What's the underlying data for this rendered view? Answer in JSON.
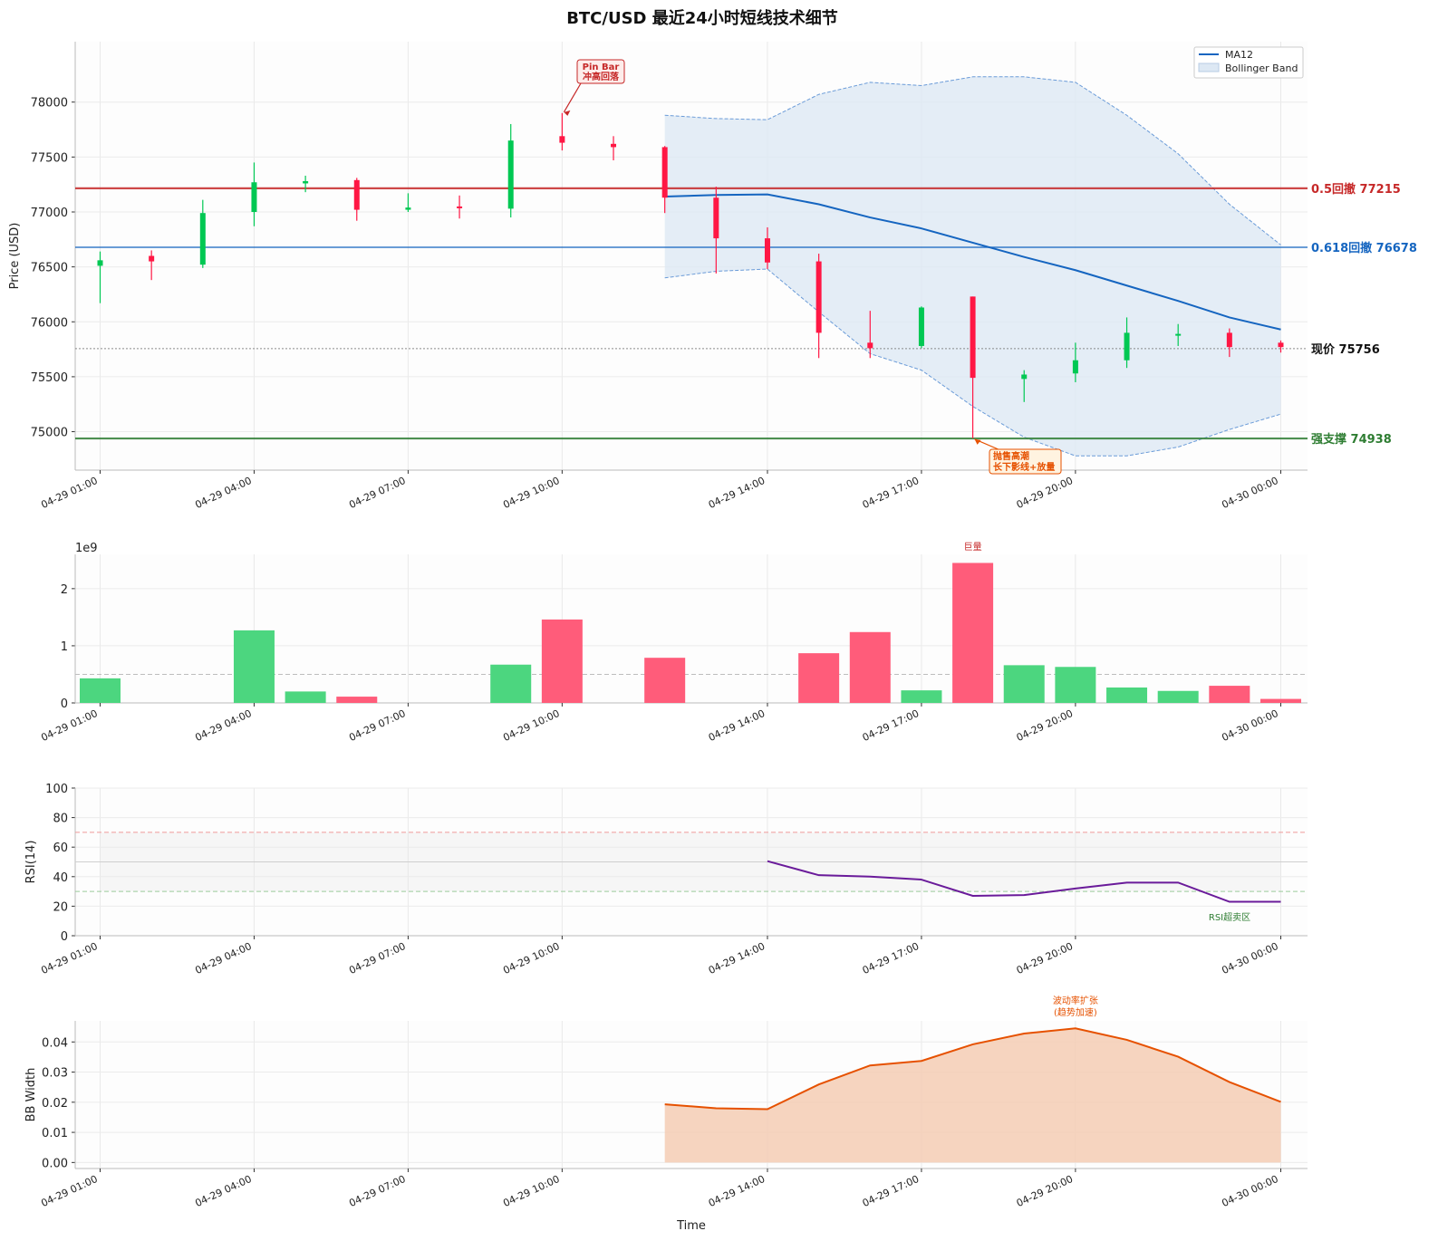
{
  "title": "BTC/USD 最近24小时短线技术细节",
  "chart_data": [
    {
      "type": "candlestick",
      "panel": "price",
      "ylabel": "Price (USD)",
      "ylim": [
        74650,
        78550
      ],
      "yticks": [
        75000,
        75500,
        76000,
        76500,
        77000,
        77500,
        78000
      ],
      "xtick_labels": [
        "04-29 01:00",
        "04-29 04:00",
        "04-29 07:00",
        "04-29 10:00",
        "04-29 14:00",
        "04-29 17:00",
        "04-29 20:00",
        "04-30 00:00"
      ],
      "xtick_hours": [
        1,
        4,
        7,
        10,
        14,
        17,
        20,
        24
      ],
      "grid": true,
      "legend": {
        "placement": "top-right",
        "entries": [
          "MA12",
          "Bollinger Band"
        ]
      },
      "candles": [
        {
          "t": "04-29 01:00",
          "open": 76510,
          "high": 76640,
          "low": 76170,
          "close": 76560
        },
        {
          "t": "04-29 02:00",
          "open": 76600,
          "high": 76650,
          "low": 76380,
          "close": 76550
        },
        {
          "t": "04-29 03:00",
          "open": 76520,
          "high": 77110,
          "low": 76490,
          "close": 76990
        },
        {
          "t": "04-29 04:00",
          "open": 77000,
          "high": 77450,
          "low": 76870,
          "close": 77270
        },
        {
          "t": "04-29 05:00",
          "open": 77260,
          "high": 77330,
          "low": 77180,
          "close": 77280
        },
        {
          "t": "04-29 06:00",
          "open": 77290,
          "high": 77310,
          "low": 76920,
          "close": 77020
        },
        {
          "t": "04-29 07:00",
          "open": 77020,
          "high": 77170,
          "low": 77000,
          "close": 77040
        },
        {
          "t": "04-29 08:00",
          "open": 77050,
          "high": 77150,
          "low": 76940,
          "close": 77040
        },
        {
          "t": "04-29 09:00",
          "open": 77030,
          "high": 77800,
          "low": 76950,
          "close": 77650
        },
        {
          "t": "04-29 10:00",
          "open": 77690,
          "high": 77900,
          "low": 77560,
          "close": 77630
        },
        {
          "t": "04-29 11:00",
          "open": 77620,
          "high": 77690,
          "low": 77470,
          "close": 77590
        },
        {
          "t": "04-29 12:00",
          "open": 77590,
          "high": 77600,
          "low": 76990,
          "close": 77130
        },
        {
          "t": "04-29 13:00",
          "open": 77130,
          "high": 77230,
          "low": 76440,
          "close": 76760
        },
        {
          "t": "04-29 14:00",
          "open": 76760,
          "high": 76860,
          "low": 76480,
          "close": 76540
        },
        {
          "t": "04-29 15:00",
          "open": 76550,
          "high": 76620,
          "low": 75670,
          "close": 75900
        },
        {
          "t": "04-29 16:00",
          "open": 75810,
          "high": 76100,
          "low": 75670,
          "close": 75760
        },
        {
          "t": "04-29 17:00",
          "open": 75780,
          "high": 76140,
          "low": 75760,
          "close": 76130
        },
        {
          "t": "04-29 18:00",
          "open": 76230,
          "high": 76230,
          "low": 74940,
          "close": 75490
        },
        {
          "t": "04-29 19:00",
          "open": 75480,
          "high": 75560,
          "low": 75270,
          "close": 75520
        },
        {
          "t": "04-29 20:00",
          "open": 75530,
          "high": 75810,
          "low": 75450,
          "close": 75650
        },
        {
          "t": "04-29 21:00",
          "open": 75650,
          "high": 76040,
          "low": 75580,
          "close": 75900
        },
        {
          "t": "04-29 22:00",
          "open": 75880,
          "high": 75980,
          "low": 75780,
          "close": 75890
        },
        {
          "t": "04-29 23:00",
          "open": 75900,
          "high": 75940,
          "low": 75680,
          "close": 75770
        },
        {
          "t": "04-30 00:00",
          "open": 75810,
          "high": 75830,
          "low": 75720,
          "close": 75770
        }
      ],
      "series": [
        {
          "name": "MA12",
          "x": [
            "04-29 12:00",
            "04-29 13:00",
            "04-29 14:00",
            "04-29 15:00",
            "04-29 16:00",
            "04-29 17:00",
            "04-29 18:00",
            "04-29 19:00",
            "04-29 20:00",
            "04-29 21:00",
            "04-29 22:00",
            "04-29 23:00",
            "04-30 00:00"
          ],
          "values": [
            77140,
            77155,
            77160,
            77070,
            76950,
            76850,
            76720,
            76590,
            76470,
            76330,
            76190,
            76040,
            75930
          ],
          "color": "#1565c0"
        },
        {
          "name": "Bollinger Band",
          "x": [
            "04-29 12:00",
            "04-29 13:00",
            "04-29 14:00",
            "04-29 15:00",
            "04-29 16:00",
            "04-29 17:00",
            "04-29 18:00",
            "04-29 19:00",
            "04-29 20:00",
            "04-29 21:00",
            "04-29 22:00",
            "04-29 23:00",
            "04-30 00:00"
          ],
          "upper": [
            77880,
            77850,
            77840,
            78070,
            78180,
            78150,
            78230,
            78230,
            78180,
            77880,
            77530,
            77070,
            76700
          ],
          "lower": [
            76400,
            76460,
            76480,
            76090,
            75710,
            75560,
            75230,
            74950,
            74780,
            74780,
            74860,
            75020,
            75160
          ],
          "color": "#6a9bd8"
        }
      ],
      "hlines": [
        {
          "label": "0.5回撤 77215",
          "value": 77215,
          "color": "#c62828"
        },
        {
          "label": "0.618回撤 76678",
          "value": 76678,
          "color": "#1565c0"
        },
        {
          "label": "现价 75756",
          "value": 75756,
          "color": "#777777"
        },
        {
          "label": "强支撑 74938",
          "value": 74938,
          "color": "#2e7d32"
        }
      ],
      "annotations": [
        {
          "line1": "Pin Bar",
          "line2": "冲高回落",
          "at": "04-29 10:00",
          "value": 77900,
          "color": "#c62828"
        },
        {
          "line1": "抛售高潮",
          "line2": "长下影线+放量",
          "at": "04-29 18:00",
          "value": 74940,
          "color": "#e65100"
        }
      ]
    },
    {
      "type": "bar",
      "panel": "volume",
      "offset_text": "1e9",
      "ylim": [
        0,
        2.6
      ],
      "yticks": [
        0,
        1,
        2
      ],
      "average_line": 0.5,
      "annotation": "巨量",
      "volumes": [
        {
          "t": "04-29 01:00",
          "value": 0.43,
          "dir": "up"
        },
        {
          "t": "04-29 04:00",
          "value": 1.27,
          "dir": "up"
        },
        {
          "t": "04-29 05:00",
          "value": 0.2,
          "dir": "up"
        },
        {
          "t": "04-29 06:00",
          "value": 0.11,
          "dir": "down"
        },
        {
          "t": "04-29 09:00",
          "value": 0.67,
          "dir": "up"
        },
        {
          "t": "04-29 10:00",
          "value": 1.46,
          "dir": "down"
        },
        {
          "t": "04-29 12:00",
          "value": 0.79,
          "dir": "down"
        },
        {
          "t": "04-29 15:00",
          "value": 0.87,
          "dir": "down"
        },
        {
          "t": "04-29 16:00",
          "value": 1.24,
          "dir": "down"
        },
        {
          "t": "04-29 17:00",
          "value": 0.22,
          "dir": "up"
        },
        {
          "t": "04-29 18:00",
          "value": 2.45,
          "dir": "down"
        },
        {
          "t": "04-29 19:00",
          "value": 0.66,
          "dir": "up"
        },
        {
          "t": "04-29 20:00",
          "value": 0.63,
          "dir": "up"
        },
        {
          "t": "04-29 21:00",
          "value": 0.27,
          "dir": "up"
        },
        {
          "t": "04-29 22:00",
          "value": 0.21,
          "dir": "up"
        },
        {
          "t": "04-29 23:00",
          "value": 0.3,
          "dir": "down"
        },
        {
          "t": "04-30 00:00",
          "value": 0.07,
          "dir": "down"
        }
      ]
    },
    {
      "type": "line",
      "panel": "rsi",
      "ylabel": "RSI(14)",
      "ylim": [
        0,
        100
      ],
      "yticks": [
        0,
        20,
        40,
        60,
        80,
        100
      ],
      "overbought": 70,
      "oversold": 30,
      "midline": 50,
      "annotation": "RSI超卖区",
      "series": [
        {
          "name": "RSI(14)",
          "x": [
            "04-29 14:00",
            "04-29 15:00",
            "04-29 16:00",
            "04-29 17:00",
            "04-29 18:00",
            "04-29 19:00",
            "04-29 20:00",
            "04-29 21:00",
            "04-29 22:00",
            "04-29 23:00",
            "04-30 00:00"
          ],
          "values": [
            50.5,
            41,
            40,
            38,
            27,
            27.5,
            32,
            36,
            36,
            23,
            23
          ],
          "color": "#6a1b9a"
        }
      ]
    },
    {
      "type": "area",
      "panel": "bbwidth",
      "ylabel": "BB Width",
      "xlabel": "Time",
      "ylim": [
        -0.002,
        0.047
      ],
      "yticks": [
        0.0,
        0.01,
        0.02,
        0.03,
        0.04
      ],
      "ytick_labels": [
        "0.00",
        "0.01",
        "0.02",
        "0.03",
        "0.04"
      ],
      "annotation_line1": "波动率扩张",
      "annotation_line2": "(趋势加速)",
      "series": [
        {
          "name": "BB Width",
          "x": [
            "04-29 12:00",
            "04-29 13:00",
            "04-29 14:00",
            "04-29 15:00",
            "04-29 16:00",
            "04-29 17:00",
            "04-29 18:00",
            "04-29 19:00",
            "04-29 20:00",
            "04-29 21:00",
            "04-29 22:00",
            "04-29 23:00",
            "04-30 00:00"
          ],
          "values": [
            0.0193,
            0.018,
            0.0177,
            0.0259,
            0.0322,
            0.0337,
            0.0392,
            0.0428,
            0.0445,
            0.0407,
            0.0351,
            0.0267,
            0.0201
          ],
          "color": "#e65100"
        }
      ]
    }
  ],
  "colors": {
    "up": "#00c853",
    "down": "#ff1744",
    "vol_up": "#4cd67f",
    "vol_down": "#ff5c7a",
    "band_fill": "#dde8f4",
    "rsi_line": "#6a1b9a",
    "bbw_line": "#e65100",
    "bbw_fill": "#f5cdb4"
  }
}
